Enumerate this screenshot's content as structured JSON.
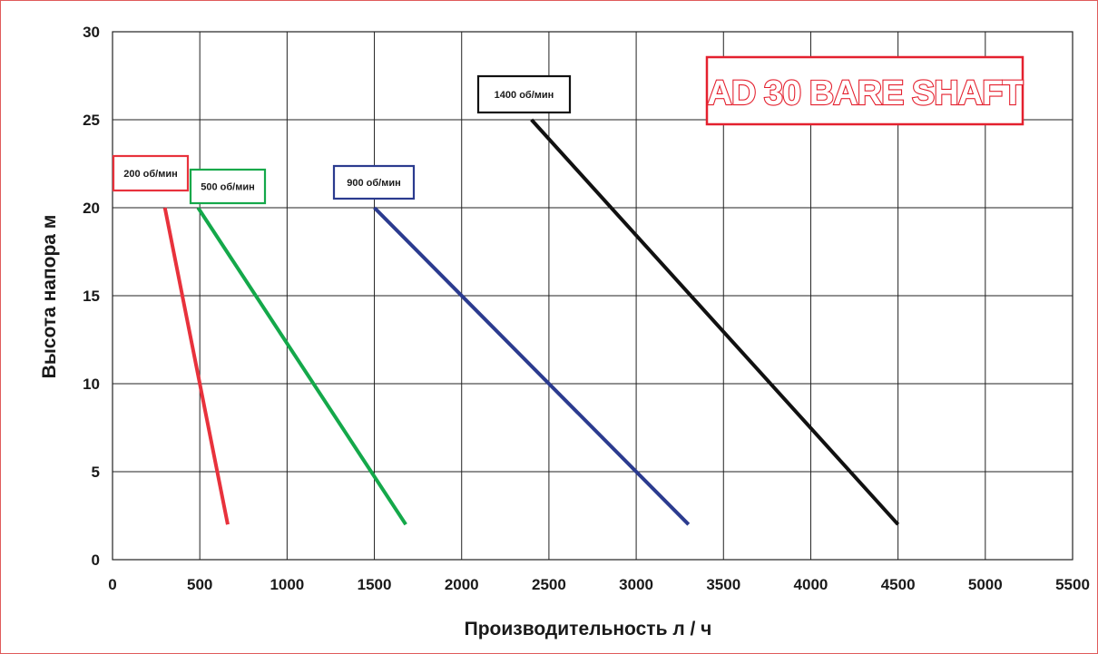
{
  "chart_data": {
    "type": "line",
    "title": "AD 30 BARE SHAFT",
    "xlabel": "Производительность л / ч",
    "ylabel": "Высота напора м",
    "xlim": [
      0,
      5500
    ],
    "ylim": [
      0,
      30
    ],
    "xticks": [
      0,
      500,
      1000,
      1500,
      2000,
      2500,
      3000,
      3500,
      4000,
      4500,
      5000,
      5500
    ],
    "yticks": [
      0,
      5,
      10,
      15,
      20,
      25,
      30
    ],
    "grid": true,
    "series": [
      {
        "name": "200 об/мин",
        "color": "#e8323c",
        "x": [
          300,
          660
        ],
        "y": [
          20,
          2
        ]
      },
      {
        "name": "500 об/мин",
        "color": "#14a84a",
        "x": [
          490,
          1680
        ],
        "y": [
          20,
          2
        ]
      },
      {
        "name": "900 об/мин",
        "color": "#2b3b8f",
        "x": [
          1500,
          3300
        ],
        "y": [
          20,
          2
        ]
      },
      {
        "name": "1400 об/мин",
        "color": "#111111",
        "x": [
          2400,
          4500
        ],
        "y": [
          25,
          2
        ]
      }
    ],
    "title_color": "#e4202e"
  }
}
